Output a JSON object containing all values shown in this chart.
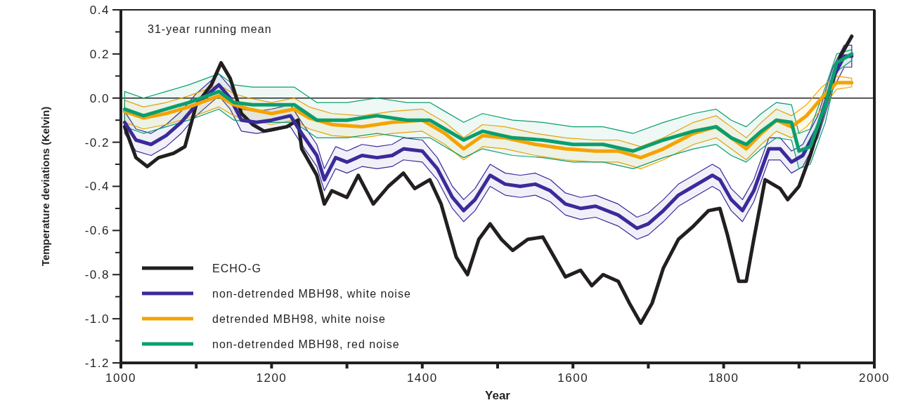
{
  "chart_data": {
    "type": "line",
    "xlabel": "Year",
    "ylabel": "Temperature deviations (Kelvin)",
    "annotations": [
      "31-year running mean"
    ],
    "xlim": [
      1000,
      2000
    ],
    "xticks": [
      1000,
      {
        "value": 1100,
        "label": null
      },
      1200,
      {
        "value": 1300,
        "label": null
      },
      1400,
      {
        "value": 1500,
        "label": null
      },
      1600,
      {
        "value": 1700,
        "label": null
      },
      1800,
      {
        "value": 1900,
        "label": null
      },
      2000
    ],
    "ylim": [
      -1.2,
      0.4
    ],
    "yticks": [
      {
        "value": -1.2,
        "label": "-1.2"
      },
      {
        "value": -1.1,
        "label": null
      },
      {
        "value": -1.0,
        "label": "-1.0"
      },
      {
        "value": -0.9,
        "label": null
      },
      {
        "value": -0.8,
        "label": "-0.8"
      },
      {
        "value": -0.7,
        "label": null
      },
      {
        "value": -0.6,
        "label": "-0.6"
      },
      {
        "value": -0.5,
        "label": null
      },
      {
        "value": -0.4,
        "label": "-0.4"
      },
      {
        "value": -0.3,
        "label": null
      },
      {
        "value": -0.2,
        "label": "-0.2"
      },
      {
        "value": -0.1,
        "label": null
      },
      {
        "value": 0,
        "label": "0.0"
      },
      {
        "value": 0.1,
        "label": null
      },
      {
        "value": 0.2,
        "label": "0.2"
      },
      {
        "value": 0.3,
        "label": null
      },
      {
        "value": 0.4,
        "label": "0.4"
      }
    ],
    "ref_lines": [
      {
        "axis": "y",
        "value": 0,
        "color": "#231f20"
      }
    ],
    "legend": "bottom left",
    "grid": false,
    "series": [
      {
        "name": "ECHO-G",
        "color": "#231f20",
        "x": [
          1005,
          1020,
          1035,
          1050,
          1070,
          1085,
          1100,
          1120,
          1133,
          1145,
          1160,
          1175,
          1190,
          1205,
          1220,
          1235,
          1240,
          1260,
          1270,
          1280,
          1300,
          1315,
          1335,
          1355,
          1375,
          1390,
          1410,
          1425,
          1445,
          1460,
          1475,
          1490,
          1505,
          1520,
          1540,
          1560,
          1575,
          1590,
          1610,
          1625,
          1640,
          1660,
          1675,
          1690,
          1705,
          1720,
          1740,
          1760,
          1780,
          1795,
          1805,
          1820,
          1830,
          1840,
          1855,
          1875,
          1885,
          1900,
          1915,
          1935,
          1955,
          1970
        ],
        "values": [
          -0.13,
          -0.27,
          -0.31,
          -0.27,
          -0.25,
          -0.22,
          -0.03,
          0.06,
          0.16,
          0.09,
          -0.07,
          -0.12,
          -0.15,
          -0.14,
          -0.13,
          -0.1,
          -0.23,
          -0.35,
          -0.48,
          -0.42,
          -0.45,
          -0.35,
          -0.48,
          -0.4,
          -0.34,
          -0.41,
          -0.37,
          -0.48,
          -0.72,
          -0.8,
          -0.64,
          -0.57,
          -0.64,
          -0.69,
          -0.64,
          -0.63,
          -0.72,
          -0.81,
          -0.78,
          -0.85,
          -0.8,
          -0.83,
          -0.93,
          -1.02,
          -0.93,
          -0.77,
          -0.64,
          -0.58,
          -0.51,
          -0.5,
          -0.62,
          -0.83,
          -0.83,
          -0.64,
          -0.37,
          -0.41,
          -0.46,
          -0.4,
          -0.26,
          -0.03,
          0.19,
          0.28
        ]
      },
      {
        "name": "non-detrended MBH98, white noise",
        "color": "#3a2a9a",
        "x": [
          1005,
          1020,
          1040,
          1060,
          1080,
          1100,
          1130,
          1145,
          1160,
          1180,
          1200,
          1225,
          1240,
          1260,
          1270,
          1285,
          1300,
          1320,
          1340,
          1360,
          1375,
          1400,
          1420,
          1440,
          1455,
          1470,
          1490,
          1510,
          1530,
          1550,
          1570,
          1590,
          1610,
          1630,
          1660,
          1685,
          1700,
          1720,
          1740,
          1760,
          1785,
          1795,
          1810,
          1825,
          1840,
          1860,
          1875,
          1890,
          1905,
          1925,
          1945,
          1960,
          1970
        ],
        "values": [
          -0.11,
          -0.19,
          -0.21,
          -0.17,
          -0.11,
          -0.03,
          0.06,
          0.0,
          -0.1,
          -0.11,
          -0.1,
          -0.08,
          -0.16,
          -0.26,
          -0.37,
          -0.27,
          -0.29,
          -0.26,
          -0.27,
          -0.26,
          -0.23,
          -0.24,
          -0.32,
          -0.45,
          -0.51,
          -0.46,
          -0.35,
          -0.39,
          -0.4,
          -0.39,
          -0.42,
          -0.48,
          -0.5,
          -0.49,
          -0.53,
          -0.59,
          -0.57,
          -0.51,
          -0.44,
          -0.4,
          -0.35,
          -0.37,
          -0.46,
          -0.51,
          -0.42,
          -0.23,
          -0.23,
          -0.29,
          -0.26,
          -0.13,
          0.09,
          0.19,
          0.19
        ],
        "upper": [
          -0.06,
          -0.14,
          -0.16,
          -0.12,
          -0.06,
          0.02,
          0.11,
          0.05,
          -0.05,
          -0.06,
          -0.05,
          -0.03,
          -0.11,
          -0.21,
          -0.32,
          -0.22,
          -0.24,
          -0.21,
          -0.22,
          -0.21,
          -0.18,
          -0.19,
          -0.27,
          -0.4,
          -0.46,
          -0.41,
          -0.3,
          -0.34,
          -0.35,
          -0.34,
          -0.37,
          -0.43,
          -0.45,
          -0.44,
          -0.48,
          -0.54,
          -0.52,
          -0.46,
          -0.39,
          -0.35,
          -0.3,
          -0.32,
          -0.41,
          -0.46,
          -0.37,
          -0.18,
          -0.18,
          -0.24,
          -0.21,
          -0.08,
          0.14,
          0.24,
          0.24
        ],
        "lower": [
          -0.16,
          -0.24,
          -0.26,
          -0.22,
          -0.16,
          -0.08,
          0.01,
          -0.05,
          -0.15,
          -0.16,
          -0.15,
          -0.13,
          -0.21,
          -0.31,
          -0.42,
          -0.32,
          -0.34,
          -0.31,
          -0.32,
          -0.31,
          -0.28,
          -0.29,
          -0.37,
          -0.5,
          -0.56,
          -0.51,
          -0.4,
          -0.44,
          -0.45,
          -0.44,
          -0.47,
          -0.53,
          -0.55,
          -0.54,
          -0.58,
          -0.64,
          -0.62,
          -0.56,
          -0.49,
          -0.45,
          -0.4,
          -0.42,
          -0.51,
          -0.56,
          -0.47,
          -0.28,
          -0.28,
          -0.34,
          -0.31,
          -0.18,
          0.04,
          0.14,
          0.14
        ]
      },
      {
        "name": "detrended MBH98, white noise",
        "color": "#f5a300",
        "x": [
          1005,
          1030,
          1060,
          1090,
          1130,
          1150,
          1170,
          1200,
          1230,
          1250,
          1280,
          1320,
          1360,
          1400,
          1430,
          1455,
          1480,
          1510,
          1550,
          1590,
          1630,
          1660,
          1690,
          1720,
          1760,
          1790,
          1810,
          1830,
          1850,
          1870,
          1890,
          1910,
          1930,
          1950,
          1970
        ],
        "values": [
          -0.06,
          -0.09,
          -0.07,
          -0.04,
          0.01,
          -0.03,
          -0.05,
          -0.07,
          -0.05,
          -0.09,
          -0.12,
          -0.13,
          -0.11,
          -0.1,
          -0.16,
          -0.23,
          -0.17,
          -0.18,
          -0.21,
          -0.23,
          -0.24,
          -0.24,
          -0.27,
          -0.23,
          -0.16,
          -0.13,
          -0.18,
          -0.23,
          -0.16,
          -0.1,
          -0.13,
          -0.08,
          0.0,
          0.07,
          0.07
        ],
        "upper": [
          -0.01,
          -0.04,
          -0.02,
          0.01,
          0.06,
          0.02,
          0.0,
          -0.02,
          0.0,
          -0.04,
          -0.07,
          -0.08,
          -0.06,
          -0.05,
          -0.11,
          -0.18,
          -0.12,
          -0.13,
          -0.16,
          -0.18,
          -0.19,
          -0.19,
          -0.22,
          -0.18,
          -0.11,
          -0.08,
          -0.13,
          -0.18,
          -0.11,
          -0.05,
          -0.08,
          -0.03,
          0.05,
          0.1,
          0.09
        ],
        "lower": [
          -0.11,
          -0.14,
          -0.12,
          -0.09,
          -0.04,
          -0.08,
          -0.1,
          -0.12,
          -0.1,
          -0.14,
          -0.17,
          -0.18,
          -0.16,
          -0.15,
          -0.21,
          -0.28,
          -0.22,
          -0.23,
          -0.26,
          -0.28,
          -0.29,
          -0.29,
          -0.32,
          -0.28,
          -0.21,
          -0.18,
          -0.23,
          -0.28,
          -0.21,
          -0.15,
          -0.18,
          -0.13,
          -0.05,
          0.04,
          0.05
        ]
      },
      {
        "name": "non-detrended MBH98, red noise",
        "color": "#0a9e6e",
        "x": [
          1005,
          1030,
          1060,
          1090,
          1130,
          1150,
          1175,
          1200,
          1230,
          1260,
          1300,
          1340,
          1380,
          1410,
          1430,
          1455,
          1480,
          1520,
          1560,
          1600,
          1640,
          1680,
          1720,
          1760,
          1790,
          1810,
          1830,
          1850,
          1870,
          1890,
          1900,
          1915,
          1935,
          1950,
          1970
        ],
        "values": [
          -0.05,
          -0.08,
          -0.05,
          -0.02,
          0.03,
          -0.02,
          -0.03,
          -0.03,
          -0.03,
          -0.1,
          -0.1,
          -0.08,
          -0.1,
          -0.1,
          -0.14,
          -0.19,
          -0.15,
          -0.18,
          -0.19,
          -0.21,
          -0.21,
          -0.24,
          -0.19,
          -0.15,
          -0.13,
          -0.18,
          -0.21,
          -0.15,
          -0.1,
          -0.11,
          -0.24,
          -0.22,
          -0.03,
          0.16,
          0.2
        ],
        "upper": [
          0.03,
          0.0,
          0.03,
          0.06,
          0.11,
          0.06,
          0.05,
          0.05,
          0.05,
          -0.02,
          -0.02,
          0.0,
          -0.02,
          -0.02,
          -0.06,
          -0.11,
          -0.07,
          -0.1,
          -0.11,
          -0.13,
          -0.13,
          -0.16,
          -0.11,
          -0.07,
          -0.05,
          -0.1,
          -0.13,
          -0.07,
          -0.02,
          -0.03,
          -0.16,
          -0.14,
          0.05,
          0.2,
          0.22
        ],
        "lower": [
          -0.13,
          -0.16,
          -0.13,
          -0.1,
          -0.05,
          -0.1,
          -0.11,
          -0.11,
          -0.11,
          -0.18,
          -0.18,
          -0.16,
          -0.18,
          -0.18,
          -0.22,
          -0.27,
          -0.23,
          -0.26,
          -0.27,
          -0.29,
          -0.29,
          -0.32,
          -0.27,
          -0.23,
          -0.21,
          -0.26,
          -0.29,
          -0.23,
          -0.18,
          -0.19,
          -0.32,
          -0.3,
          -0.11,
          0.12,
          0.17
        ]
      }
    ]
  }
}
